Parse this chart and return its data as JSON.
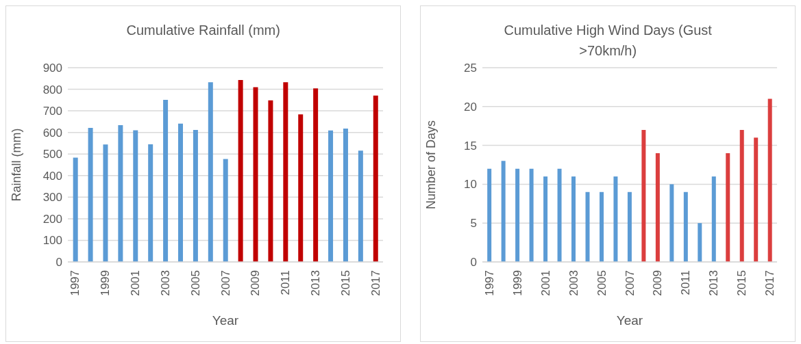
{
  "chart_data": [
    {
      "type": "bar",
      "title": "Cumulative Rainfall (mm)",
      "xlabel": "Year",
      "ylabel": "Rainfall (mm)",
      "categories": [
        "1997",
        null,
        "1999",
        null,
        "2001",
        null,
        "2003",
        null,
        "2005",
        null,
        "2007",
        null,
        "2009",
        null,
        "2011",
        null,
        "2013",
        null,
        "2015",
        null,
        "2017"
      ],
      "values": [
        483,
        621,
        544,
        634,
        610,
        545,
        751,
        641,
        612,
        833,
        477,
        843,
        810,
        749,
        833,
        684,
        804,
        609,
        618,
        516,
        771
      ],
      "colors": [
        "#5b9bd5",
        "#5b9bd5",
        "#5b9bd5",
        "#5b9bd5",
        "#5b9bd5",
        "#5b9bd5",
        "#5b9bd5",
        "#5b9bd5",
        "#5b9bd5",
        "#5b9bd5",
        "#5b9bd5",
        "#c00000",
        "#c00000",
        "#c00000",
        "#c00000",
        "#c00000",
        "#c00000",
        "#5b9bd5",
        "#5b9bd5",
        "#5b9bd5",
        "#c00000"
      ],
      "ylim": [
        0,
        900
      ],
      "yticks": [
        0,
        100,
        200,
        300,
        400,
        500,
        600,
        700,
        800,
        900
      ],
      "grid": "y"
    },
    {
      "type": "bar",
      "title": "Cumulative High Wind Days (Gust >70km/h)",
      "xlabel": "Year",
      "ylabel": "Number of Days",
      "categories": [
        "1997",
        null,
        "1999",
        null,
        "2001",
        null,
        "2003",
        null,
        "2005",
        null,
        "2007",
        null,
        "2009",
        null,
        "2011",
        null,
        "2013",
        null,
        "2015",
        null,
        "2017"
      ],
      "values": [
        12,
        13,
        12,
        12,
        11,
        12,
        11,
        9,
        9,
        11,
        9,
        17,
        14,
        10,
        9,
        5,
        11,
        14,
        17,
        16,
        21
      ],
      "colors": [
        "#5b9bd5",
        "#5b9bd5",
        "#5b9bd5",
        "#5b9bd5",
        "#5b9bd5",
        "#5b9bd5",
        "#5b9bd5",
        "#5b9bd5",
        "#5b9bd5",
        "#5b9bd5",
        "#5b9bd5",
        "#db3e3e",
        "#db3e3e",
        "#5b9bd5",
        "#5b9bd5",
        "#5b9bd5",
        "#5b9bd5",
        "#db3e3e",
        "#db3e3e",
        "#db3e3e",
        "#db3e3e"
      ],
      "ylim": [
        0,
        25
      ],
      "yticks": [
        0,
        5,
        10,
        15,
        20,
        25
      ],
      "grid": "y"
    }
  ]
}
